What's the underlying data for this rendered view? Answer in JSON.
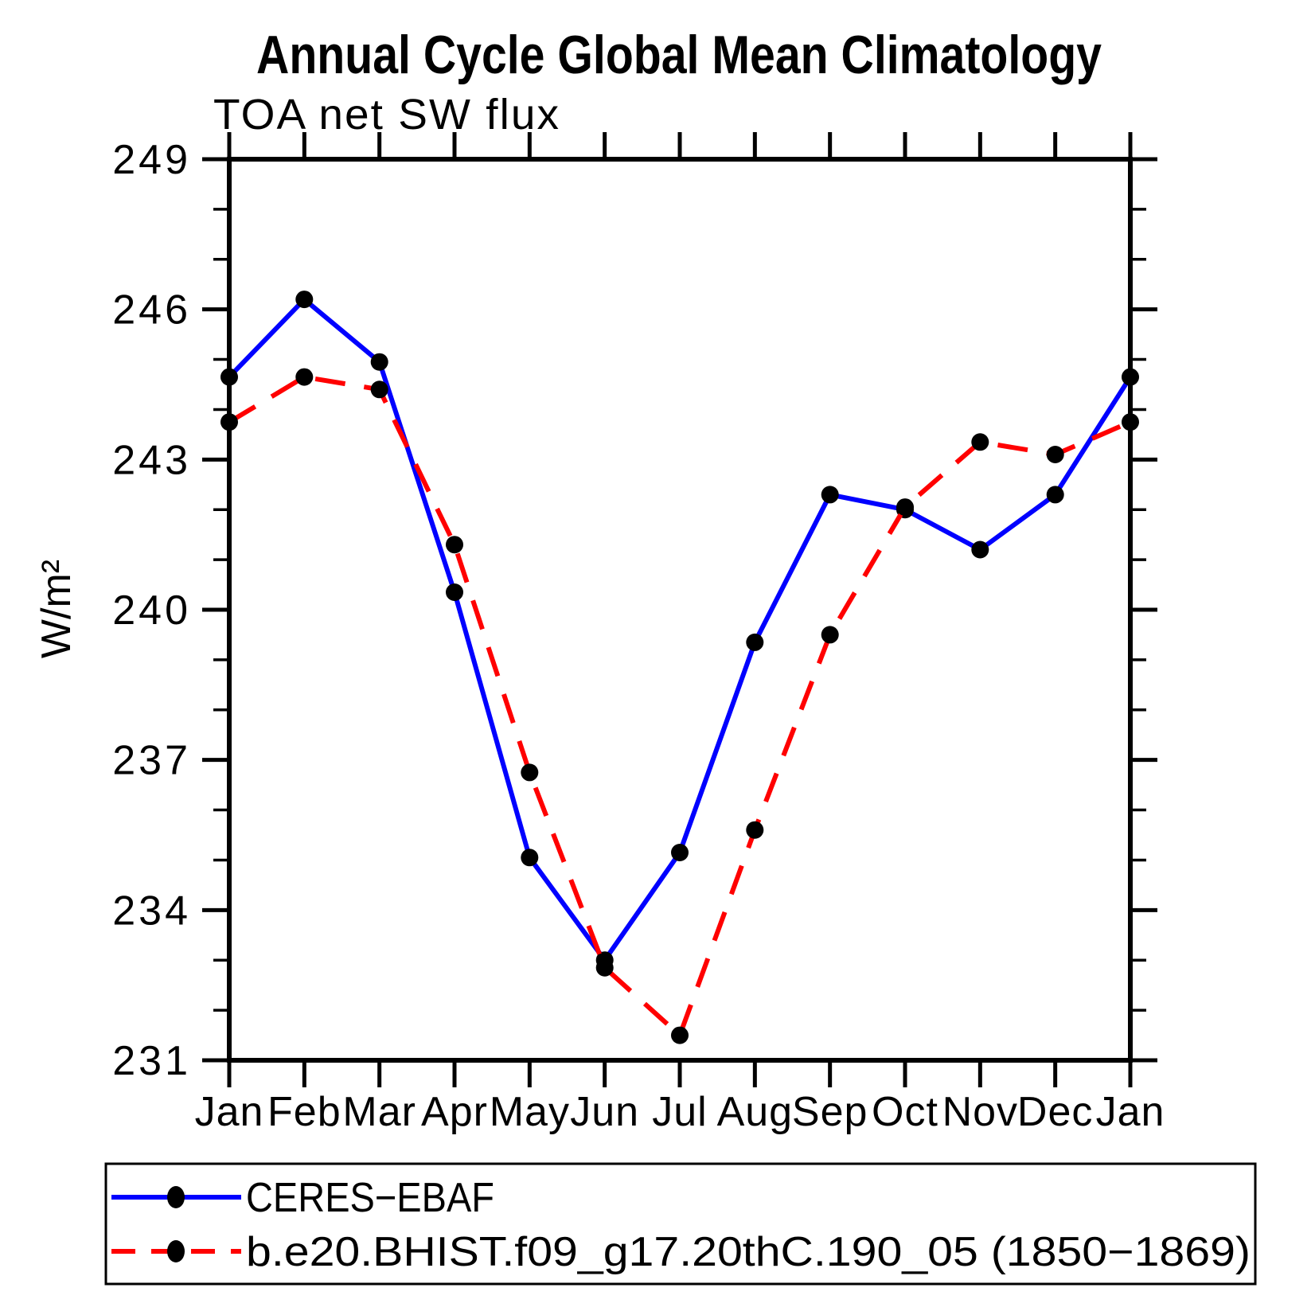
{
  "title": "Annual Cycle Global Mean Climatology",
  "subtitle": "TOA net SW flux",
  "chart_data": {
    "type": "line",
    "categories": [
      "Jan",
      "Feb",
      "Mar",
      "Apr",
      "May",
      "Jun",
      "Jul",
      "Aug",
      "Sep",
      "Oct",
      "Nov",
      "Dec",
      "Jan"
    ],
    "series": [
      {
        "name": "CERES−EBAF",
        "color": "#0000ff",
        "line_style": "solid",
        "marker": "filled-circle",
        "marker_color": "#000000",
        "values": [
          244.65,
          246.2,
          244.95,
          240.35,
          235.05,
          233.0,
          235.15,
          239.35,
          242.3,
          242.0,
          241.2,
          242.3,
          244.65
        ]
      },
      {
        "name": "b.e20.BHIST.f09_g17.20thC.190_05 (1850−1869)",
        "color": "#ff0000",
        "line_style": "dashed",
        "marker": "filled-circle",
        "marker_color": "#000000",
        "values": [
          243.75,
          244.65,
          244.4,
          241.3,
          236.75,
          232.85,
          231.5,
          235.6,
          239.5,
          242.05,
          243.35,
          243.1,
          243.75
        ]
      }
    ],
    "title": "TOA net SW flux",
    "xlabel": "",
    "ylabel": "W/m²",
    "ylim": [
      231,
      249
    ],
    "ytick_major_step": 3,
    "ytick_minor_step": 1,
    "ytick_labels": [
      "249",
      "246",
      "243",
      "240",
      "237",
      "234",
      "231"
    ],
    "grid": "off",
    "legend_position": "bottom"
  },
  "colors": {
    "axis": "#000000",
    "series1": "#0000ff",
    "series2": "#ff0000",
    "marker": "#000000",
    "background": "#ffffff"
  }
}
